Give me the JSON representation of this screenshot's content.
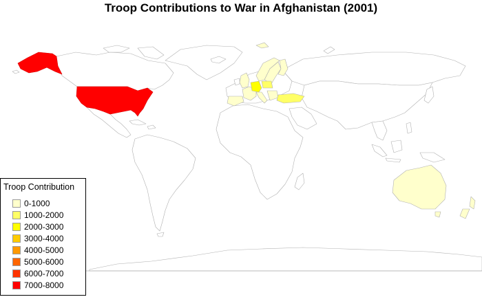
{
  "title": "Troop Contributions to War in Afghanistan (2001)",
  "legend": {
    "title": "Troop Contribution",
    "items": [
      {
        "label": "0-1000",
        "color": "#ffffcc"
      },
      {
        "label": "1000-2000",
        "color": "#ffff66"
      },
      {
        "label": "2000-3000",
        "color": "#ffff00"
      },
      {
        "label": "3000-4000",
        "color": "#ffcc00"
      },
      {
        "label": "4000-5000",
        "color": "#ff9900"
      },
      {
        "label": "5000-6000",
        "color": "#ff6600"
      },
      {
        "label": "6000-7000",
        "color": "#ff3300"
      },
      {
        "label": "7000-8000",
        "color": "#ff0000"
      }
    ]
  },
  "chart_data": {
    "type": "choropleth",
    "title": "Troop Contributions to War in Afghanistan (2001)",
    "legend_title": "Troop Contribution",
    "legend_position": "bottom-left",
    "regions": [
      {
        "name": "United States",
        "bin": "7000-8000",
        "color": "#ff0000"
      },
      {
        "name": "Alaska",
        "bin": "7000-8000",
        "color": "#ff0000"
      },
      {
        "name": "Germany",
        "bin": "2000-3000",
        "color": "#ffff00"
      },
      {
        "name": "Turkey",
        "bin": "1000-2000",
        "color": "#ffff66"
      },
      {
        "name": "Poland",
        "bin": "1000-2000",
        "color": "#ffff66"
      },
      {
        "name": "United Kingdom",
        "bin": "0-1000",
        "color": "#ffffcc"
      },
      {
        "name": "France",
        "bin": "0-1000",
        "color": "#ffffcc"
      },
      {
        "name": "Spain",
        "bin": "0-1000",
        "color": "#ffffcc"
      },
      {
        "name": "Italy",
        "bin": "0-1000",
        "color": "#ffffcc"
      },
      {
        "name": "Norway",
        "bin": "0-1000",
        "color": "#ffffcc"
      },
      {
        "name": "Sweden",
        "bin": "0-1000",
        "color": "#ffffcc"
      },
      {
        "name": "Finland",
        "bin": "0-1000",
        "color": "#ffffcc"
      },
      {
        "name": "Australia",
        "bin": "0-1000",
        "color": "#ffffcc"
      },
      {
        "name": "New Zealand",
        "bin": "0-1000",
        "color": "#ffffcc"
      }
    ]
  }
}
